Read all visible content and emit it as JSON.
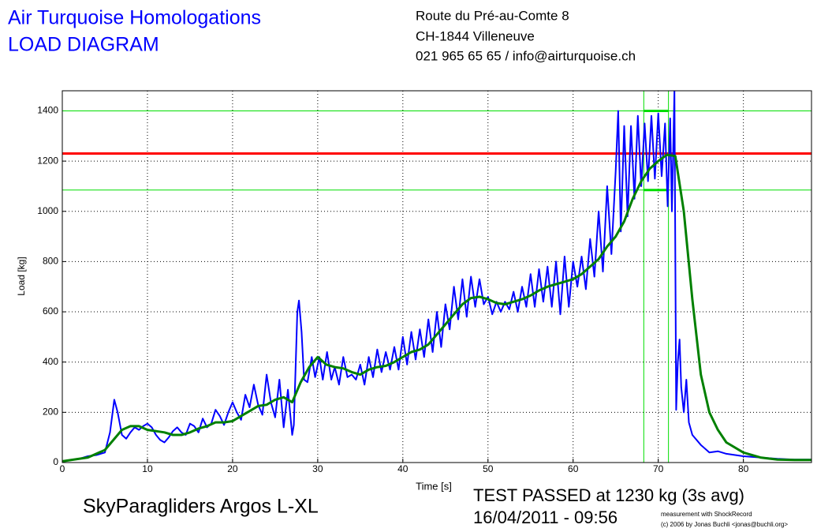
{
  "chart_data": {
    "type": "line",
    "title": "Air Turquoise Homologations",
    "subtitle": "LOAD DIAGRAM",
    "address": [
      "Route du Pré-au-Comte 8",
      "CH-1844 Villeneuve",
      "021 965 65 65 / info@airturquoise.ch"
    ],
    "xlabel": "Time [s]",
    "ylabel": "Load [kg]",
    "annotations": [
      "SkyParagliders Argos L-XL",
      "TEST PASSED at 1230 kg (3s avg)",
      "16/04/2011 - 09:56",
      "measurement with ShockRecord",
      "(c) 2006 by Jonas Buchli <jonas@buchli.org>"
    ],
    "xlim": [
      0,
      88
    ],
    "ylim": [
      0,
      1480
    ],
    "xticks": [
      0,
      10,
      20,
      30,
      40,
      50,
      60,
      70,
      80
    ],
    "yticks": [
      0,
      200,
      400,
      600,
      800,
      1000,
      1200,
      1400
    ],
    "grid": true,
    "hlines": [
      {
        "value": 1400,
        "color": "#00dd00"
      },
      {
        "value": 1085,
        "color": "#00dd00"
      },
      {
        "value": 1230,
        "color": "#ff0000"
      }
    ],
    "vlines": [
      {
        "value": 68.3,
        "color": "#00dd00"
      },
      {
        "value": 71.2,
        "color": "#00dd00"
      }
    ],
    "series": [
      {
        "color": "#0000ff",
        "x": [
          0,
          2,
          3,
          4,
          5,
          5.6,
          6.1,
          6.5,
          7,
          7.5,
          8,
          8.5,
          9,
          9.5,
          10,
          10.5,
          11,
          11.5,
          12,
          12.5,
          13,
          13.5,
          14,
          14.5,
          15,
          15.5,
          16,
          16.5,
          17,
          17.5,
          18,
          18.5,
          19,
          19.5,
          20,
          20.5,
          21,
          21.5,
          22,
          22.5,
          23,
          23.5,
          24,
          24.5,
          25,
          25.5,
          26,
          26.5,
          27,
          27.2,
          27.6,
          27.8,
          28.1,
          28.4,
          28.8,
          29.3,
          29.7,
          30.2,
          30.6,
          31.1,
          31.6,
          32,
          32.5,
          33,
          33.5,
          34,
          34.5,
          35,
          35.5,
          36,
          36.5,
          37,
          37.5,
          38,
          38.5,
          39,
          39.5,
          40,
          40.5,
          41,
          41.5,
          42,
          42.5,
          43,
          43.5,
          44,
          44.5,
          45,
          45.5,
          46,
          46.5,
          47,
          47.5,
          48,
          48.5,
          49,
          49.5,
          50,
          50.5,
          51,
          51.5,
          52,
          52.5,
          53,
          53.5,
          54,
          54.5,
          55,
          55.5,
          56,
          56.5,
          57,
          57.5,
          58,
          58.5,
          59,
          59.5,
          60,
          60.5,
          61,
          61.5,
          62,
          62.5,
          63,
          63.5,
          64,
          64.5,
          65,
          65.3,
          65.6,
          66,
          66.4,
          66.8,
          67.2,
          67.6,
          68,
          68.4,
          68.8,
          69.2,
          69.6,
          70,
          70.4,
          70.8,
          71.1,
          71.4,
          71.6,
          71.9,
          72.1,
          72.3,
          72.5,
          72.7,
          73,
          73.3,
          73.6,
          74,
          75,
          76,
          77,
          78,
          80,
          82,
          84,
          86,
          88
        ],
        "values": [
          5,
          15,
          25,
          30,
          40,
          120,
          250,
          200,
          110,
          95,
          120,
          140,
          130,
          145,
          155,
          140,
          110,
          90,
          80,
          100,
          125,
          140,
          120,
          110,
          155,
          145,
          120,
          175,
          140,
          155,
          210,
          185,
          150,
          200,
          240,
          200,
          170,
          270,
          220,
          310,
          230,
          190,
          350,
          240,
          180,
          330,
          140,
          290,
          110,
          150,
          600,
          645,
          520,
          330,
          320,
          420,
          340,
          420,
          330,
          440,
          330,
          380,
          310,
          420,
          340,
          350,
          330,
          390,
          310,
          420,
          340,
          450,
          360,
          440,
          370,
          460,
          370,
          500,
          390,
          520,
          410,
          530,
          420,
          570,
          440,
          600,
          460,
          630,
          530,
          700,
          570,
          730,
          580,
          740,
          620,
          730,
          630,
          660,
          590,
          640,
          600,
          640,
          610,
          680,
          600,
          700,
          620,
          750,
          620,
          770,
          640,
          780,
          620,
          800,
          590,
          820,
          620,
          800,
          700,
          820,
          690,
          890,
          740,
          1000,
          760,
          1100,
          830,
          1160,
          1400,
          920,
          1340,
          980,
          1340,
          1050,
          1380,
          1100,
          1350,
          1120,
          1380,
          1130,
          1390,
          1140,
          1350,
          1020,
          1370,
          1000,
          1480,
          210,
          400,
          490,
          300,
          200,
          330,
          160,
          110,
          70,
          40,
          45,
          35,
          25,
          20,
          15,
          12,
          12
        ]
      },
      {
        "color": "#008000",
        "x": [
          0,
          3,
          5,
          6,
          7,
          8,
          9,
          10,
          11,
          12,
          13,
          14,
          15,
          16,
          17,
          18,
          19,
          20,
          21,
          22,
          23,
          24,
          25,
          26,
          27,
          28,
          29,
          30,
          31,
          32,
          33,
          34,
          35,
          36,
          37,
          38,
          39,
          40,
          41,
          42,
          43,
          44,
          45,
          46,
          47,
          48,
          49,
          50,
          51,
          52,
          53,
          54,
          55,
          56,
          57,
          58,
          59,
          60,
          61,
          62,
          63,
          64,
          65,
          66,
          67,
          68,
          69,
          70,
          71,
          72,
          73,
          74,
          75,
          76,
          77,
          78,
          80,
          82,
          84,
          86,
          88
        ],
        "values": [
          5,
          20,
          50,
          90,
          130,
          145,
          145,
          130,
          125,
          120,
          110,
          110,
          120,
          135,
          145,
          160,
          160,
          165,
          185,
          205,
          225,
          230,
          250,
          260,
          240,
          320,
          380,
          420,
          390,
          380,
          375,
          360,
          350,
          370,
          380,
          385,
          400,
          420,
          440,
          450,
          470,
          510,
          550,
          590,
          630,
          655,
          660,
          650,
          635,
          630,
          640,
          650,
          665,
          685,
          700,
          710,
          720,
          730,
          750,
          780,
          810,
          860,
          900,
          960,
          1050,
          1120,
          1170,
          1200,
          1225,
          1220,
          1000,
          650,
          350,
          200,
          130,
          80,
          40,
          20,
          12,
          10,
          10
        ]
      }
    ]
  }
}
